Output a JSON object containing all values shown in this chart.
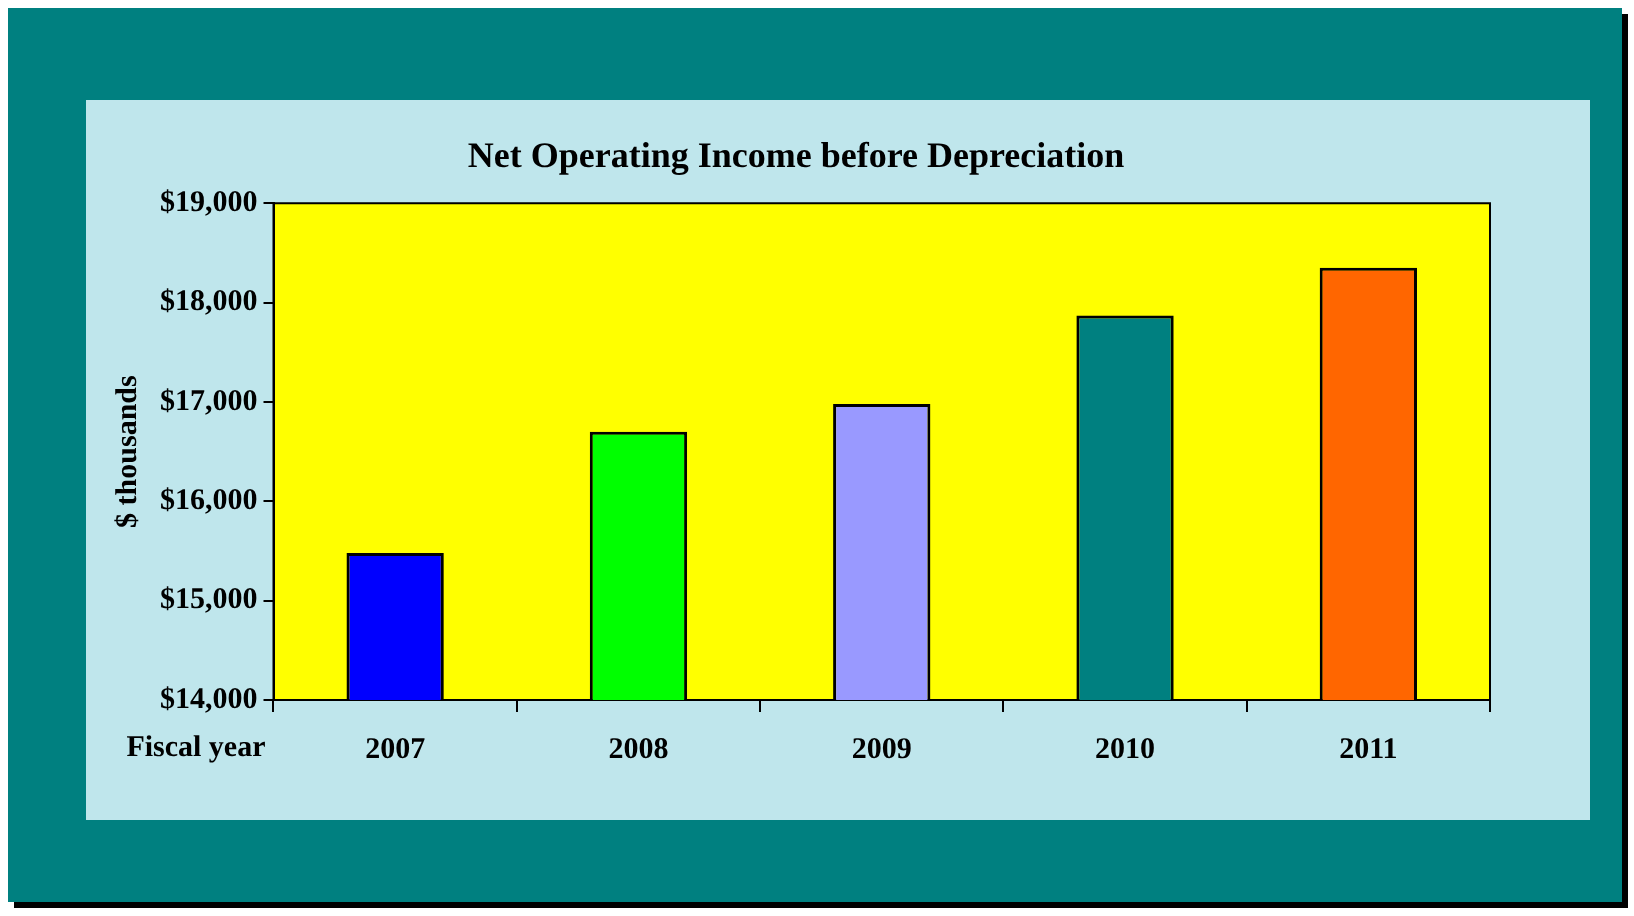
{
  "chart_data": {
    "type": "bar",
    "title": "Net Operating Income before Depreciation",
    "xlabel": "Fiscal year",
    "ylabel": "$ thousands",
    "categories": [
      "2007",
      "2008",
      "2009",
      "2010",
      "2011"
    ],
    "values": [
      15480,
      16700,
      16980,
      17870,
      18350
    ],
    "colors": [
      "#0000ff",
      "#00ff00",
      "#9999ff",
      "#008080",
      "#ff6600"
    ],
    "ylim": [
      14000,
      19000
    ],
    "yticks": [
      {
        "value": 14000,
        "label": "$14,000"
      },
      {
        "value": 15000,
        "label": "$15,000"
      },
      {
        "value": 16000,
        "label": "$16,000"
      },
      {
        "value": 17000,
        "label": "$17,000"
      },
      {
        "value": 18000,
        "label": "$18,000"
      },
      {
        "value": 19000,
        "label": "$19,000"
      }
    ],
    "grid": false,
    "legend": false
  }
}
